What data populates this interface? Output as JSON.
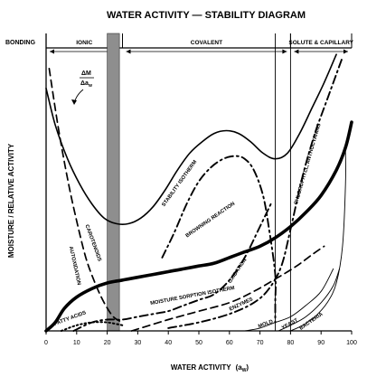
{
  "chart_data": {
    "type": "line",
    "title": "WATER ACTIVITY — STABILITY DIAGRAM",
    "xlabel": "WATER ACTIVITY",
    "xlabel_symbol": "(a",
    "xlabel_subscript": "W",
    "xlabel_close": ")",
    "ylabel": "MOISTURE  /  RELATIVE ACTIVITY",
    "xlim": [
      0,
      100
    ],
    "ylim": [
      0,
      100
    ],
    "x_ticks": [
      0,
      10,
      20,
      30,
      40,
      50,
      60,
      70,
      80,
      90,
      100
    ],
    "grid": false,
    "bonding": {
      "label": "BONDING",
      "regions": [
        {
          "label": "IONIC",
          "from": 0,
          "to": 25
        },
        {
          "label": "COVALENT",
          "from": 25,
          "to": 80
        },
        {
          "label": "SOLUTE & CAPILLARY",
          "from": 80,
          "to": 100
        }
      ]
    },
    "shaded_band": {
      "from": 20,
      "to": 24
    },
    "reference_lines": [
      75,
      80
    ],
    "annotations": {
      "dm_num": "ΔM",
      "dm_den": "Δa",
      "dm_den_sub": "w"
    },
    "series": [
      {
        "name": "STABILITY ISOTHERM",
        "style": "solid",
        "x": [
          0,
          3,
          7,
          11,
          15,
          19,
          23,
          27,
          31,
          35,
          39,
          43,
          47,
          51,
          55,
          59,
          63,
          67,
          71,
          75,
          79,
          83,
          87,
          91,
          95
        ],
        "y": [
          86,
          73,
          61,
          52,
          45,
          40,
          38,
          38,
          40,
          44,
          50,
          57,
          63,
          67,
          70,
          71,
          70,
          67,
          63,
          61,
          63,
          70,
          79,
          88,
          98
        ]
      },
      {
        "name": "MOISTURE SORPTION ISOTHERM",
        "style": "thick",
        "x": [
          0,
          3,
          6,
          10,
          15,
          20,
          25,
          30,
          35,
          40,
          45,
          50,
          55,
          60,
          65,
          70,
          75,
          80,
          85,
          90,
          95,
          98,
          100
        ],
        "y": [
          0,
          3,
          8,
          12,
          15,
          17,
          18,
          19,
          20,
          21,
          22,
          23,
          24,
          26,
          28,
          30,
          33,
          37,
          42,
          48,
          57,
          65,
          74
        ]
      },
      {
        "name": "BROWNING REACTION",
        "style": "dash-dot",
        "x": [
          38,
          42,
          46,
          50,
          54,
          58,
          62,
          65,
          68,
          71,
          73,
          75,
          75,
          75
        ],
        "y": [
          26,
          35,
          45,
          53,
          58,
          61,
          62,
          61,
          57,
          48,
          36,
          20,
          10,
          3
        ]
      },
      {
        "name": "OXIDATION",
        "style": "dash-dot",
        "x": [
          9,
          15,
          20,
          25,
          30,
          35,
          40,
          45,
          50,
          55,
          60,
          65,
          70,
          74
        ],
        "y": [
          0,
          3,
          4,
          4,
          5,
          6,
          7,
          9,
          11,
          13,
          18,
          26,
          37,
          46
        ]
      },
      {
        "name": "AUTOXIDATION, CAROTENOIDS",
        "style": "dashed",
        "x": [
          1,
          4,
          7,
          10,
          13,
          16,
          19,
          22,
          25
        ],
        "y": [
          93,
          72,
          54,
          39,
          26,
          17,
          10,
          5,
          3
        ]
      },
      {
        "name": "CHLOROPHYLL, ANTHOCYANINS",
        "style": "dash-dot",
        "x": [
          40,
          50,
          60,
          68,
          73,
          77,
          80,
          84,
          88,
          93,
          97
        ],
        "y": [
          1,
          3,
          6,
          10,
          15,
          23,
          36,
          55,
          70,
          85,
          97
        ]
      },
      {
        "name": "FATTY ACIDS",
        "style": "dotted",
        "x": [
          5,
          10,
          15,
          20,
          25
        ],
        "y": [
          0,
          2,
          3,
          3,
          2
        ]
      },
      {
        "name": "ENZYMES",
        "style": "dashed",
        "x": [
          28,
          40,
          50,
          60,
          68,
          76,
          82,
          87,
          91
        ],
        "y": [
          0,
          4,
          7,
          10,
          14,
          19,
          23,
          27,
          30
        ]
      },
      {
        "name": "MOLD",
        "style": "thin",
        "x": [
          65,
          70,
          75,
          80,
          85,
          90,
          94
        ],
        "y": [
          0,
          1,
          3,
          5,
          9,
          14,
          22
        ]
      },
      {
        "name": "YEAST",
        "style": "thin",
        "x": [
          76,
          80,
          85,
          90,
          94,
          96
        ],
        "y": [
          0,
          2,
          5,
          10,
          16,
          22
        ]
      },
      {
        "name": "BACTERIA",
        "style": "thin",
        "x": [
          80,
          84,
          88,
          92,
          95,
          97,
          98,
          98
        ],
        "y": [
          0,
          2,
          5,
          10,
          17,
          30,
          52,
          64
        ]
      }
    ],
    "labels": [
      {
        "text": "STABILITY ISOTHERM",
        "series": "STABILITY ISOTHERM",
        "x": 44,
        "y": 52
      },
      {
        "text": "BROWNING REACTION",
        "series": "BROWNING REACTION",
        "x": 54,
        "y": 39
      },
      {
        "text": "MOISTURE SORPTION ISOTHERM",
        "series": "MOISTURE SORPTION ISOTHERM",
        "x": 48,
        "y": 12
      },
      {
        "text": "OXIDATION",
        "series": "OXIDATION",
        "x": 63,
        "y": 21
      },
      {
        "text": "AUTOXIDATION",
        "series": "AUTOXIDATION, CAROTENOIDS",
        "x": 9,
        "y": 23
      },
      {
        "text": "CAROTENOIDS",
        "series": "AUTOXIDATION, CAROTENOIDS",
        "x": 15,
        "y": 31
      },
      {
        "text": "CHLOROPHYLL, ANTHOCYANINS",
        "series": "CHLOROPHYLL, ANTHOCYANINS",
        "x": 86,
        "y": 59
      },
      {
        "text": "FATTY ACIDS",
        "series": "FATTY ACIDS",
        "x": 8,
        "y": 4
      },
      {
        "text": "ENZYMES",
        "series": "ENZYMES",
        "x": 64,
        "y": 9
      },
      {
        "text": "MOLD",
        "series": "MOLD",
        "x": 72,
        "y": 2
      },
      {
        "text": "YEAST",
        "series": "YEAST",
        "x": 80,
        "y": 2
      },
      {
        "text": "BACTERIA",
        "series": "BACTERIA",
        "x": 87,
        "y": 3
      }
    ]
  }
}
